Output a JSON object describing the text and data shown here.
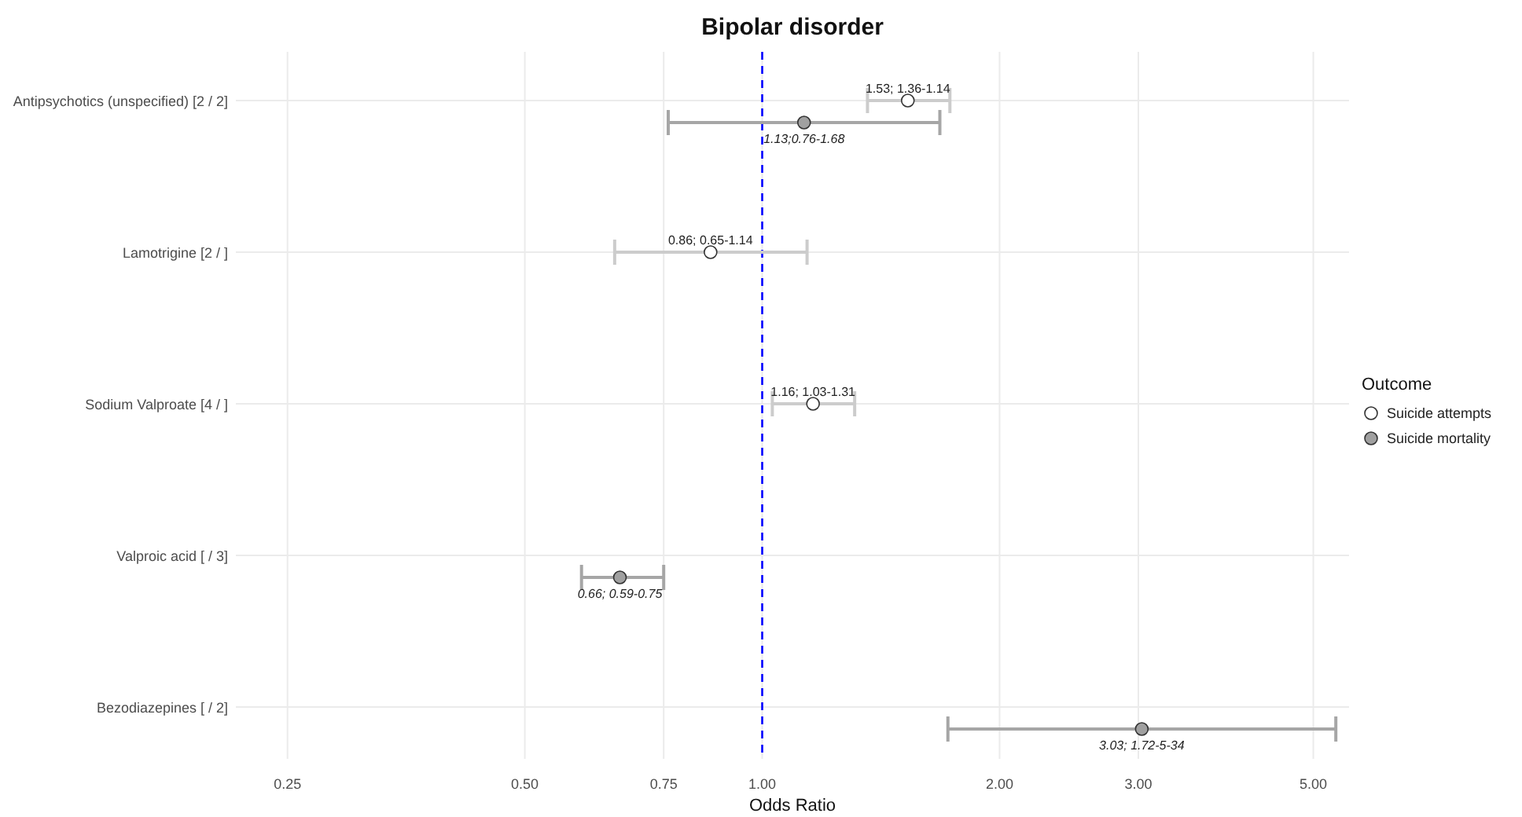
{
  "chart_data": {
    "type": "scatter",
    "orientation": "horizontal",
    "title": "Bipolar disorder",
    "xlabel": "Odds Ratio",
    "legend_title": "Outcome",
    "legend": "right",
    "log": "x",
    "grid": true,
    "marker": "circle",
    "categories": [
      "Antipsychotics (unspecified) [2 / 2]",
      "Lamotrigine [2 / ]",
      "Sodium Valproate [4 / ]",
      "Valproic acid [ / 3]",
      "Bezodiazepines [ / 2]"
    ],
    "xlim": [
      0.215,
      5.55
    ],
    "xticks": [
      {
        "value": 0.25,
        "label": "0.25"
      },
      {
        "value": 0.5,
        "label": "0.50"
      },
      {
        "value": 0.75,
        "label": "0.75"
      },
      {
        "value": 1,
        "label": "1.00"
      },
      {
        "value": 2,
        "label": "2.00"
      },
      {
        "value": 3,
        "label": "3.00"
      },
      {
        "value": 5,
        "label": "5.00"
      }
    ],
    "ref_lines": [
      {
        "axis": "x",
        "value": 1,
        "color": "#0000ff",
        "line_style": "dashed"
      }
    ],
    "series": [
      {
        "name": "Suicide attempts",
        "color": "#ffffff",
        "values": [
          1.53,
          0.86,
          1.16,
          null,
          null
        ],
        "errors": [
          [
            1.36,
            1.73
          ],
          [
            0.65,
            1.14
          ],
          [
            1.03,
            1.31
          ],
          null,
          null
        ],
        "value_labels": [
          "1.53; 1.36-1.14",
          "0.86; 0.65-1.14",
          "1.16; 1.03-1.31",
          null,
          null
        ]
      },
      {
        "name": "Suicide mortality",
        "color": "#a0a0a0",
        "values": [
          1.13,
          null,
          null,
          0.66,
          3.03
        ],
        "errors": [
          [
            0.76,
            1.68
          ],
          null,
          null,
          [
            0.59,
            0.75
          ],
          [
            1.72,
            5.34
          ]
        ],
        "value_labels": [
          "1.13;0.76-1.68",
          null,
          null,
          "0.66; 0.59-0.75",
          "3.03; 1.72-5-34"
        ]
      }
    ]
  }
}
